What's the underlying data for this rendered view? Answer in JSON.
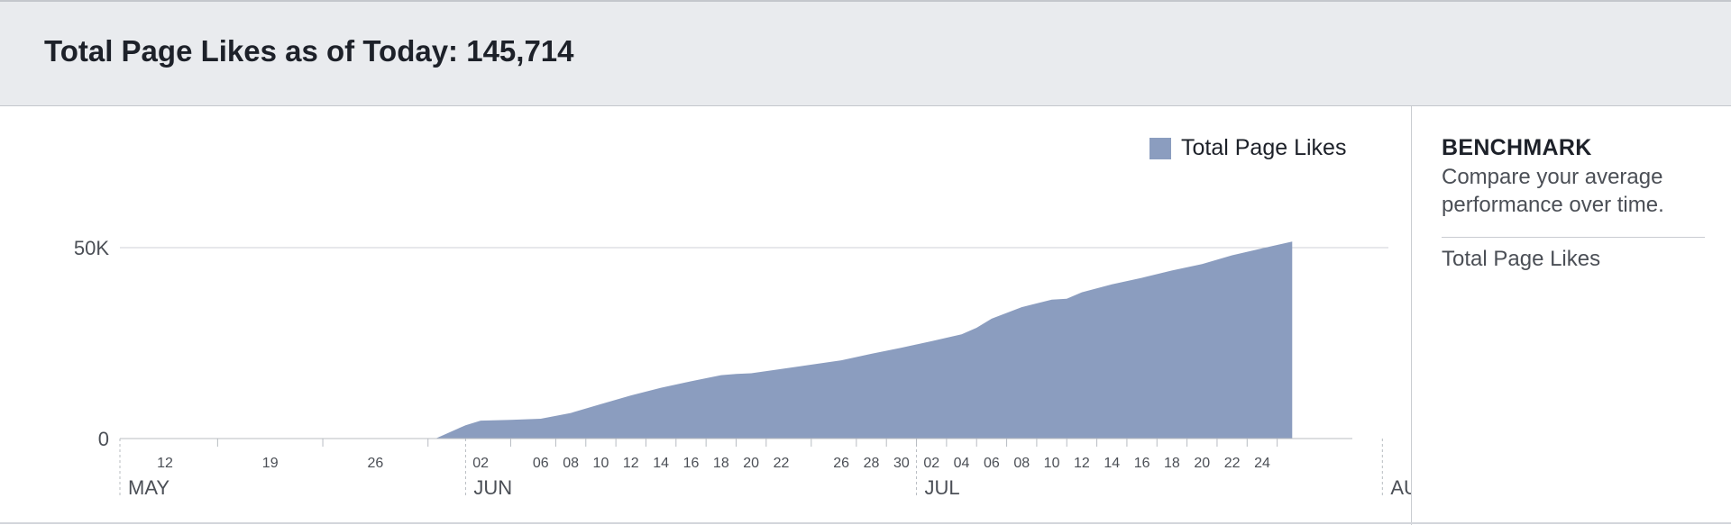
{
  "header": {
    "title": "Total Page Likes as of Today: 145,714"
  },
  "legend": {
    "label": "Total Page Likes",
    "color": "#8b9dbf"
  },
  "sidebar": {
    "title": "BENCHMARK",
    "description": "Compare your average performance over time.",
    "items": [
      {
        "label": "Total Page Likes"
      }
    ]
  },
  "chart_data": {
    "type": "area",
    "title": "",
    "xlabel": "",
    "ylabel": "",
    "x_domain": [
      "2016-05-09",
      "2016-08-02"
    ],
    "ylim": [
      0,
      50000
    ],
    "y_ticks": [
      {
        "value": 0,
        "label": "0"
      },
      {
        "value": 50000,
        "label": "50K"
      }
    ],
    "grid": true,
    "legend_position": "top-right",
    "x_ticks": [
      {
        "date": "2016-05-12",
        "label": "12"
      },
      {
        "date": "2016-05-19",
        "label": "19"
      },
      {
        "date": "2016-05-26",
        "label": "26"
      },
      {
        "date": "2016-06-02",
        "label": "02"
      },
      {
        "date": "2016-06-06",
        "label": "06"
      },
      {
        "date": "2016-06-08",
        "label": "08"
      },
      {
        "date": "2016-06-10",
        "label": "10"
      },
      {
        "date": "2016-06-12",
        "label": "12"
      },
      {
        "date": "2016-06-14",
        "label": "14"
      },
      {
        "date": "2016-06-16",
        "label": "16"
      },
      {
        "date": "2016-06-18",
        "label": "18"
      },
      {
        "date": "2016-06-20",
        "label": "20"
      },
      {
        "date": "2016-06-22",
        "label": "22"
      },
      {
        "date": "2016-06-26",
        "label": "26"
      },
      {
        "date": "2016-06-28",
        "label": "28"
      },
      {
        "date": "2016-06-30",
        "label": "30"
      },
      {
        "date": "2016-07-02",
        "label": "02"
      },
      {
        "date": "2016-07-04",
        "label": "04"
      },
      {
        "date": "2016-07-06",
        "label": "06"
      },
      {
        "date": "2016-07-08",
        "label": "08"
      },
      {
        "date": "2016-07-10",
        "label": "10"
      },
      {
        "date": "2016-07-12",
        "label": "12"
      },
      {
        "date": "2016-07-14",
        "label": "14"
      },
      {
        "date": "2016-07-16",
        "label": "16"
      },
      {
        "date": "2016-07-18",
        "label": "18"
      },
      {
        "date": "2016-07-20",
        "label": "20"
      },
      {
        "date": "2016-07-22",
        "label": "22"
      },
      {
        "date": "2016-07-24",
        "label": "24"
      }
    ],
    "months": [
      {
        "date": "2016-05-09",
        "label": "MAY"
      },
      {
        "date": "2016-06-01",
        "label": "JUN"
      },
      {
        "date": "2016-07-01",
        "label": "JUL"
      },
      {
        "date": "2016-08-01",
        "label": "AUG"
      }
    ],
    "series": [
      {
        "name": "Total Page Likes",
        "color": "#8b9dbf",
        "points": [
          {
            "x": "2016-05-30",
            "y": 0
          },
          {
            "x": "2016-06-01",
            "y": 3500
          },
          {
            "x": "2016-06-02",
            "y": 4700
          },
          {
            "x": "2016-06-04",
            "y": 4900
          },
          {
            "x": "2016-06-06",
            "y": 5200
          },
          {
            "x": "2016-06-08",
            "y": 6700
          },
          {
            "x": "2016-06-10",
            "y": 9000
          },
          {
            "x": "2016-06-12",
            "y": 11300
          },
          {
            "x": "2016-06-14",
            "y": 13300
          },
          {
            "x": "2016-06-16",
            "y": 15000
          },
          {
            "x": "2016-06-18",
            "y": 16600
          },
          {
            "x": "2016-06-19",
            "y": 16900
          },
          {
            "x": "2016-06-20",
            "y": 17100
          },
          {
            "x": "2016-06-22",
            "y": 18200
          },
          {
            "x": "2016-06-26",
            "y": 20500
          },
          {
            "x": "2016-06-28",
            "y": 22200
          },
          {
            "x": "2016-06-30",
            "y": 23800
          },
          {
            "x": "2016-07-02",
            "y": 25500
          },
          {
            "x": "2016-07-04",
            "y": 27300
          },
          {
            "x": "2016-07-05",
            "y": 29000
          },
          {
            "x": "2016-07-06",
            "y": 31400
          },
          {
            "x": "2016-07-08",
            "y": 34400
          },
          {
            "x": "2016-07-10",
            "y": 36400
          },
          {
            "x": "2016-07-11",
            "y": 36600
          },
          {
            "x": "2016-07-12",
            "y": 38300
          },
          {
            "x": "2016-07-14",
            "y": 40400
          },
          {
            "x": "2016-07-16",
            "y": 42100
          },
          {
            "x": "2016-07-18",
            "y": 44000
          },
          {
            "x": "2016-07-20",
            "y": 45700
          },
          {
            "x": "2016-07-22",
            "y": 48000
          },
          {
            "x": "2016-07-24",
            "y": 49800
          },
          {
            "x": "2016-07-26",
            "y": 51600
          }
        ]
      }
    ]
  }
}
